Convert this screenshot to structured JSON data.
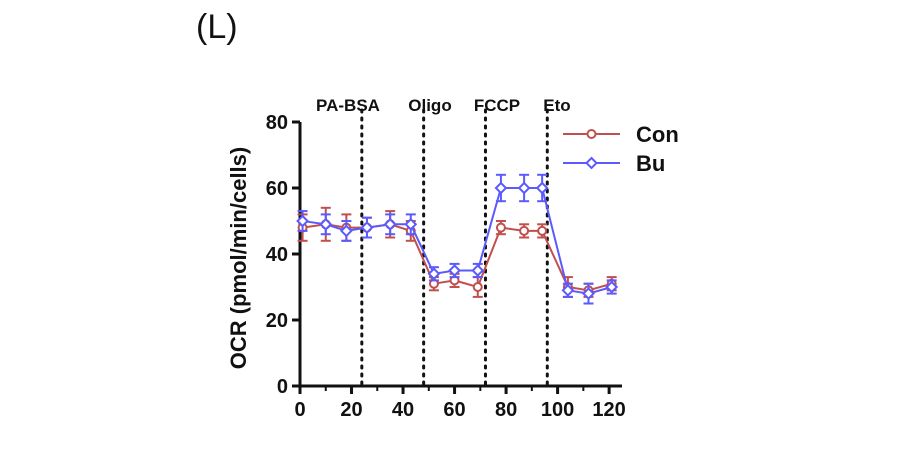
{
  "panel_label": "(L)",
  "chart_data": {
    "type": "line",
    "ylabel": "OCR (pmol/min/cells)",
    "xlabel": "",
    "xlim": [
      0,
      125
    ],
    "ylim": [
      0,
      80
    ],
    "x_ticks": [
      "0",
      "20",
      "40",
      "60",
      "80",
      "100",
      "120"
    ],
    "y_ticks": [
      "0",
      "20",
      "40",
      "60",
      "80"
    ],
    "injections": [
      {
        "label": "PA-BSA",
        "x": 24
      },
      {
        "label": "Oligo",
        "x": 48
      },
      {
        "label": "FCCP",
        "x": 72
      },
      {
        "label": "Eto",
        "x": 96
      }
    ],
    "legend_position": "top-right",
    "series": [
      {
        "name": "Con",
        "color": "#c0504d",
        "marker": "circle",
        "x": [
          1,
          10,
          18,
          26,
          35,
          43,
          52,
          60,
          69,
          78,
          87,
          94,
          104,
          112,
          121
        ],
        "y": [
          48,
          49,
          48,
          48,
          49,
          47,
          31,
          32,
          30,
          48,
          47,
          47,
          30,
          29,
          31
        ],
        "err": [
          4,
          5,
          4,
          3,
          4,
          3,
          2,
          2,
          3,
          2,
          2,
          2,
          3,
          2,
          2
        ]
      },
      {
        "name": "Bu",
        "color": "#5a5aff",
        "marker": "diamond",
        "x": [
          1,
          10,
          18,
          26,
          35,
          43,
          52,
          60,
          69,
          78,
          87,
          94,
          104,
          112,
          121
        ],
        "y": [
          50,
          49,
          47,
          48,
          49,
          49,
          34,
          35,
          35,
          60,
          60,
          60,
          29,
          28,
          30
        ],
        "err": [
          3,
          3,
          3,
          3,
          3,
          3,
          2,
          2,
          2,
          4,
          4,
          4,
          2,
          3,
          2
        ]
      }
    ]
  }
}
